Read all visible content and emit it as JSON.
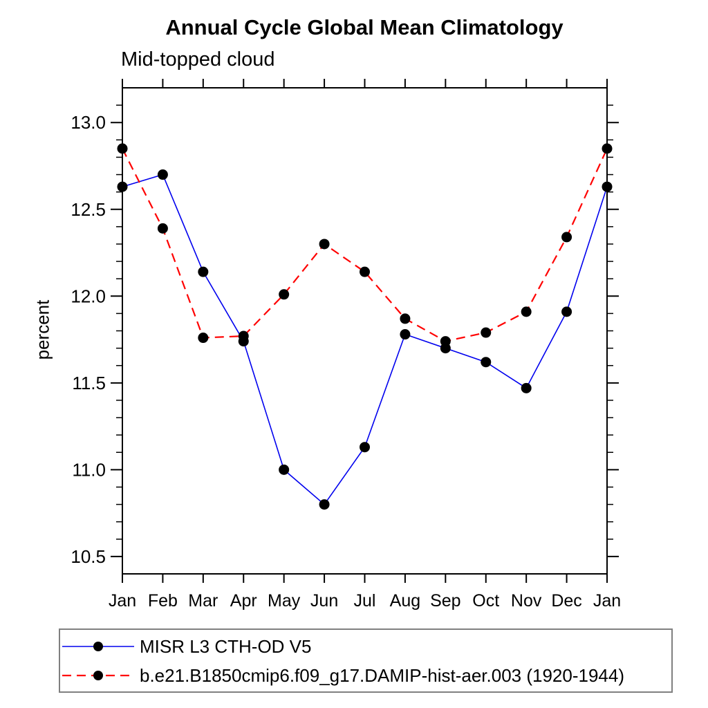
{
  "chart_data": {
    "type": "line",
    "title": "Annual Cycle Global Mean Climatology",
    "subtitle": "Mid-topped cloud",
    "ylabel": "percent",
    "xlabel": "",
    "x_categories": [
      "Jan",
      "Feb",
      "Mar",
      "Apr",
      "May",
      "Jun",
      "Jul",
      "Aug",
      "Sep",
      "Oct",
      "Nov",
      "Dec",
      "Jan"
    ],
    "ylim": [
      10.4,
      13.2
    ],
    "ytick_major_values": [
      10.5,
      11.0,
      11.5,
      12.0,
      12.5,
      13.0
    ],
    "ytick_minor_step": 0.1,
    "grid": false,
    "legend_position": "bottom-left-box",
    "frame_color": "#000000",
    "series": [
      {
        "name": "MISR L3 CTH-OD V5",
        "line_style": "solid",
        "line_color": "#0000ee",
        "marker": "filled-circle",
        "marker_color": "#000000",
        "values": [
          12.63,
          12.7,
          12.14,
          11.74,
          11.0,
          10.8,
          11.13,
          11.78,
          11.7,
          11.62,
          11.47,
          11.91,
          12.63
        ]
      },
      {
        "name": "b.e21.B1850cmip6.f09_g17.DAMIP-hist-aer.003 (1920-1944)",
        "line_style": "dashed",
        "line_color": "#ff0000",
        "marker": "filled-circle",
        "marker_color": "#000000",
        "values": [
          12.85,
          12.39,
          11.76,
          11.77,
          12.01,
          12.3,
          12.14,
          11.87,
          11.74,
          11.79,
          11.91,
          12.34,
          12.85
        ]
      }
    ]
  }
}
